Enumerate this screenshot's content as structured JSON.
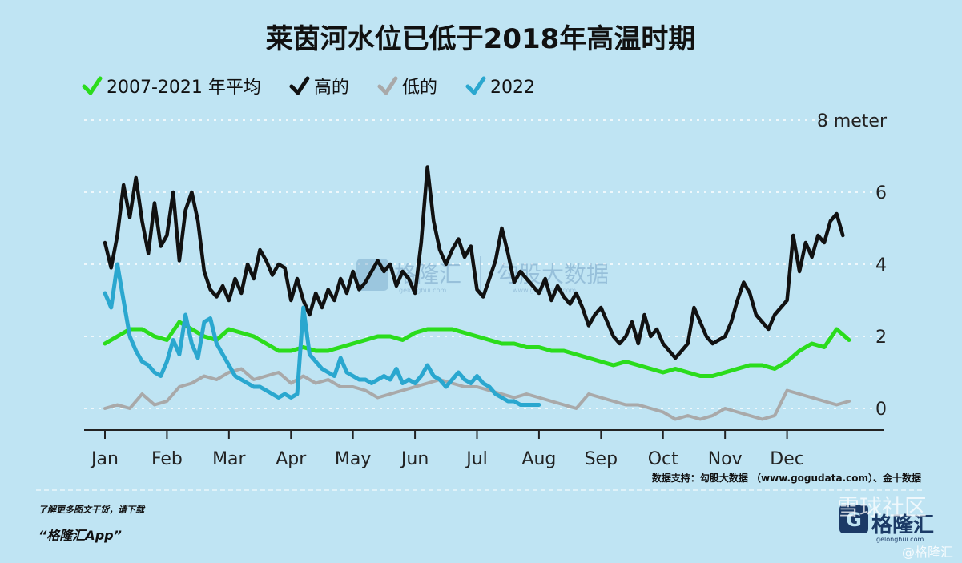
{
  "chart_data": {
    "type": "line",
    "title": "莱茵河水位已低于2018年高温时期",
    "unit_label": "8 meter",
    "y_ticks": [
      0,
      2,
      4,
      6
    ],
    "ylim": [
      -0.5,
      8
    ],
    "months": [
      "Jan",
      "Feb",
      "Mar",
      "Apr",
      "May",
      "Jun",
      "Jul",
      "Aug",
      "Sep",
      "Oct",
      "Nov",
      "Dec"
    ],
    "grid": "horizontal-dotted",
    "legend_position": "top-left",
    "series": [
      {
        "name": "2007-2021 年平均",
        "color": "#2bdc1c",
        "x": [
          0,
          0.2,
          0.4,
          0.6,
          0.8,
          1.0,
          1.2,
          1.4,
          1.6,
          1.8,
          2.0,
          2.2,
          2.4,
          2.6,
          2.8,
          3.0,
          3.2,
          3.4,
          3.6,
          3.8,
          4.0,
          4.2,
          4.4,
          4.6,
          4.8,
          5.0,
          5.2,
          5.4,
          5.6,
          5.8,
          6.0,
          6.2,
          6.4,
          6.6,
          6.8,
          7.0,
          7.2,
          7.4,
          7.6,
          7.8,
          8.0,
          8.2,
          8.4,
          8.6,
          8.8,
          9.0,
          9.2,
          9.4,
          9.6,
          9.8,
          10.0,
          10.2,
          10.4,
          10.6,
          10.8,
          11.0,
          11.2,
          11.4,
          11.6,
          11.8,
          12.0
        ],
        "y": [
          1.8,
          2.0,
          2.2,
          2.2,
          2.0,
          1.9,
          2.4,
          2.2,
          2.0,
          1.9,
          2.2,
          2.1,
          2.0,
          1.8,
          1.6,
          1.6,
          1.7,
          1.6,
          1.6,
          1.7,
          1.8,
          1.9,
          2.0,
          2.0,
          1.9,
          2.1,
          2.2,
          2.2,
          2.2,
          2.1,
          2.0,
          1.9,
          1.8,
          1.8,
          1.7,
          1.7,
          1.6,
          1.6,
          1.5,
          1.4,
          1.3,
          1.2,
          1.3,
          1.2,
          1.1,
          1.0,
          1.1,
          1.0,
          0.9,
          0.9,
          1.0,
          1.1,
          1.2,
          1.2,
          1.1,
          1.3,
          1.6,
          1.8,
          1.7,
          2.2,
          1.9
        ]
      },
      {
        "name": "高的",
        "color": "#111111",
        "x": [
          0,
          0.1,
          0.2,
          0.3,
          0.4,
          0.5,
          0.6,
          0.7,
          0.8,
          0.9,
          1.0,
          1.1,
          1.2,
          1.3,
          1.4,
          1.5,
          1.6,
          1.7,
          1.8,
          1.9,
          2.0,
          2.1,
          2.2,
          2.3,
          2.4,
          2.5,
          2.6,
          2.7,
          2.8,
          2.9,
          3.0,
          3.1,
          3.2,
          3.3,
          3.4,
          3.5,
          3.6,
          3.7,
          3.8,
          3.9,
          4.0,
          4.1,
          4.2,
          4.3,
          4.4,
          4.5,
          4.6,
          4.7,
          4.8,
          4.9,
          5.0,
          5.1,
          5.2,
          5.3,
          5.4,
          5.5,
          5.6,
          5.7,
          5.8,
          5.9,
          6.0,
          6.1,
          6.2,
          6.3,
          6.4,
          6.5,
          6.6,
          6.7,
          6.8,
          6.9,
          7.0,
          7.1,
          7.2,
          7.3,
          7.4,
          7.5,
          7.6,
          7.7,
          7.8,
          7.9,
          8.0,
          8.1,
          8.2,
          8.3,
          8.4,
          8.5,
          8.6,
          8.7,
          8.8,
          8.9,
          9.0,
          9.1,
          9.2,
          9.3,
          9.4,
          9.5,
          9.6,
          9.7,
          9.8,
          9.9,
          10.0,
          10.1,
          10.2,
          10.3,
          10.4,
          10.5,
          10.6,
          10.7,
          10.8,
          10.9,
          11.0,
          11.1,
          11.2,
          11.3,
          11.4,
          11.5,
          11.6,
          11.7,
          11.8,
          11.9
        ],
        "y": [
          4.6,
          3.9,
          4.8,
          6.2,
          5.3,
          6.4,
          5.2,
          4.3,
          5.7,
          4.5,
          4.8,
          6.0,
          4.1,
          5.5,
          6.0,
          5.2,
          3.8,
          3.3,
          3.1,
          3.4,
          3.0,
          3.6,
          3.2,
          4.0,
          3.6,
          4.4,
          4.1,
          3.7,
          4.0,
          3.9,
          3.0,
          3.6,
          3.0,
          2.6,
          3.2,
          2.8,
          3.3,
          3.0,
          3.6,
          3.2,
          3.8,
          3.3,
          3.5,
          3.8,
          4.1,
          3.8,
          4.0,
          3.4,
          3.8,
          3.6,
          3.2,
          4.6,
          6.7,
          5.2,
          4.4,
          4.0,
          4.4,
          4.7,
          4.2,
          4.5,
          3.3,
          3.1,
          3.6,
          4.1,
          5.0,
          4.3,
          3.5,
          3.8,
          3.6,
          3.4,
          3.2,
          3.6,
          3.0,
          3.4,
          3.1,
          2.9,
          3.2,
          2.8,
          2.3,
          2.6,
          2.8,
          2.4,
          2.0,
          1.8,
          2.0,
          2.4,
          1.8,
          2.6,
          2.0,
          2.2,
          1.8,
          1.6,
          1.4,
          1.6,
          1.8,
          2.8,
          2.4,
          2.0,
          1.8,
          1.9,
          2.0,
          2.4,
          3.0,
          3.5,
          3.2,
          2.6,
          2.4,
          2.2,
          2.6,
          2.8,
          3.0,
          4.8,
          3.8,
          4.6,
          4.2,
          4.8,
          4.6,
          5.2,
          5.4,
          4.8
        ]
      },
      {
        "name": "低的",
        "color": "#a9a9a9",
        "x": [
          0,
          0.2,
          0.4,
          0.6,
          0.8,
          1.0,
          1.2,
          1.4,
          1.6,
          1.8,
          2.0,
          2.2,
          2.4,
          2.6,
          2.8,
          3.0,
          3.2,
          3.4,
          3.6,
          3.8,
          4.0,
          4.2,
          4.4,
          4.6,
          4.8,
          5.0,
          5.2,
          5.4,
          5.6,
          5.8,
          6.0,
          6.2,
          6.4,
          6.6,
          6.8,
          7.0,
          7.2,
          7.4,
          7.6,
          7.8,
          8.0,
          8.2,
          8.4,
          8.6,
          8.8,
          9.0,
          9.2,
          9.4,
          9.6,
          9.8,
          10.0,
          10.2,
          10.4,
          10.6,
          10.8,
          11.0,
          11.2,
          11.4,
          11.6,
          11.8,
          12.0
        ],
        "y": [
          0.0,
          0.1,
          0.0,
          0.4,
          0.1,
          0.2,
          0.6,
          0.7,
          0.9,
          0.8,
          1.0,
          1.1,
          0.8,
          0.9,
          1.0,
          0.7,
          0.9,
          0.7,
          0.8,
          0.6,
          0.6,
          0.5,
          0.3,
          0.4,
          0.5,
          0.6,
          0.7,
          0.8,
          0.7,
          0.6,
          0.6,
          0.5,
          0.4,
          0.3,
          0.4,
          0.3,
          0.2,
          0.1,
          0.0,
          0.4,
          0.3,
          0.2,
          0.1,
          0.1,
          0.0,
          -0.1,
          -0.3,
          -0.2,
          -0.3,
          -0.2,
          0.0,
          -0.1,
          -0.2,
          -0.3,
          -0.2,
          0.5,
          0.4,
          0.3,
          0.2,
          0.1,
          0.2
        ]
      },
      {
        "name": "2022",
        "color": "#2aa7cf",
        "x": [
          0,
          0.1,
          0.2,
          0.3,
          0.4,
          0.5,
          0.6,
          0.7,
          0.8,
          0.9,
          1.0,
          1.1,
          1.2,
          1.3,
          1.4,
          1.5,
          1.6,
          1.7,
          1.8,
          1.9,
          2.0,
          2.1,
          2.2,
          2.3,
          2.4,
          2.5,
          2.6,
          2.7,
          2.8,
          2.9,
          3.0,
          3.1,
          3.2,
          3.3,
          3.4,
          3.5,
          3.6,
          3.7,
          3.8,
          3.9,
          4.0,
          4.1,
          4.2,
          4.3,
          4.4,
          4.5,
          4.6,
          4.7,
          4.8,
          4.9,
          5.0,
          5.1,
          5.2,
          5.3,
          5.4,
          5.5,
          5.6,
          5.7,
          5.8,
          5.9,
          6.0,
          6.1,
          6.2,
          6.3,
          6.4,
          6.5,
          6.6,
          6.7,
          6.8,
          6.9,
          7.0
        ],
        "y": [
          3.2,
          2.8,
          4.0,
          3.0,
          2.0,
          1.6,
          1.3,
          1.2,
          1.0,
          0.9,
          1.3,
          1.9,
          1.5,
          2.6,
          1.8,
          1.4,
          2.4,
          2.5,
          1.8,
          1.5,
          1.2,
          0.9,
          0.8,
          0.7,
          0.6,
          0.6,
          0.5,
          0.4,
          0.3,
          0.4,
          0.3,
          0.4,
          2.8,
          1.5,
          1.3,
          1.1,
          1.0,
          0.9,
          1.4,
          1.0,
          0.9,
          0.8,
          0.8,
          0.7,
          0.8,
          0.9,
          0.8,
          1.1,
          0.7,
          0.8,
          0.7,
          0.9,
          1.2,
          0.9,
          0.8,
          0.6,
          0.8,
          1.0,
          0.8,
          0.7,
          0.9,
          0.7,
          0.6,
          0.4,
          0.3,
          0.2,
          0.2,
          0.1,
          0.1,
          0.1,
          0.1
        ]
      }
    ]
  },
  "source_text": "数据支持：勾股大数据 （www.gogudata.com）、金十数据",
  "footer": {
    "line1": "了解更多图文干货，请下载",
    "line2": "“格隆汇App”"
  },
  "watermarks": {
    "center_brand": "格隆汇",
    "center_brand_url": "gelonghui.com",
    "center_data": "勾股大数据",
    "center_data_url": "www.gogudata.com",
    "bottom_right_brand": "格隆汇",
    "bottom_right_url": "gelonghui.com",
    "bottom_right_community": "雪球社区",
    "bottom_right_tag": "@格隆汇"
  }
}
